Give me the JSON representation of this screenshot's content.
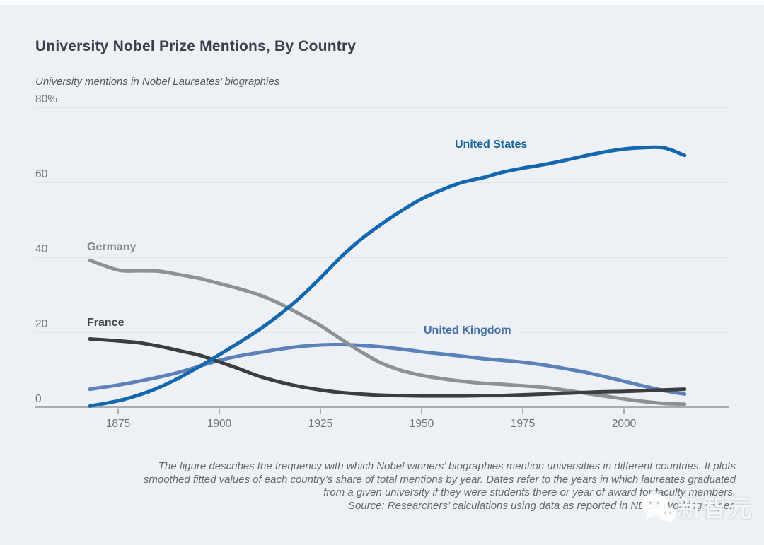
{
  "chart_data": {
    "type": "line",
    "title": "University Nobel Prize Mentions, By Country",
    "subtitle": "University mentions in Nobel Laureates’ biographies",
    "xlabel": "",
    "ylabel": "",
    "xlim": [
      1868,
      2015
    ],
    "ylim": [
      0,
      80
    ],
    "grid": true,
    "legend_position": "inline-labels",
    "x": [
      1868,
      1875,
      1880,
      1885,
      1890,
      1895,
      1900,
      1905,
      1910,
      1915,
      1920,
      1925,
      1930,
      1935,
      1940,
      1945,
      1950,
      1955,
      1960,
      1965,
      1970,
      1975,
      1980,
      1985,
      1990,
      1995,
      2000,
      2005,
      2010,
      2015
    ],
    "xticks": [
      "1875",
      "1900",
      "1925",
      "1950",
      "1975",
      "2000"
    ],
    "yticks": [
      0,
      20,
      40,
      60,
      80
    ],
    "ytick_labels": [
      "0",
      "20",
      "40",
      "60",
      "80%"
    ],
    "series": [
      {
        "name": "United Kingdom",
        "color": "#5c80ba",
        "label_color": "#446ea6",
        "values": [
          4.8,
          5.9,
          6.9,
          8.0,
          9.3,
          10.9,
          12.5,
          13.7,
          14.6,
          15.5,
          16.2,
          16.6,
          16.7,
          16.5,
          16.1,
          15.5,
          14.8,
          14.2,
          13.6,
          13.0,
          12.5,
          12.0,
          11.3,
          10.4,
          9.4,
          8.2,
          6.9,
          5.6,
          4.4,
          3.5
        ]
      },
      {
        "name": "Germany",
        "color": "#8e9194",
        "label_color": "#84888d",
        "values": [
          39.2,
          36.6,
          36.4,
          36.3,
          35.4,
          34.4,
          33.0,
          31.6,
          29.9,
          27.6,
          24.8,
          21.8,
          18.2,
          14.8,
          11.8,
          9.8,
          8.5,
          7.6,
          6.9,
          6.4,
          6.1,
          5.7,
          5.3,
          4.6,
          3.8,
          3.0,
          2.2,
          1.5,
          1.0,
          0.8
        ]
      },
      {
        "name": "France",
        "color": "#3c3d40",
        "label_color": "#43474b",
        "values": [
          18.2,
          17.7,
          17.2,
          16.3,
          15.1,
          13.9,
          12.1,
          10.2,
          8.2,
          6.7,
          5.5,
          4.6,
          3.9,
          3.5,
          3.2,
          3.1,
          3.0,
          3.0,
          3.0,
          3.1,
          3.1,
          3.3,
          3.5,
          3.7,
          3.9,
          4.1,
          4.2,
          4.4,
          4.6,
          4.8
        ]
      },
      {
        "name": "United States",
        "color": "#1267ae",
        "label_color": "#14639e",
        "values": [
          0.3,
          1.7,
          3.2,
          5.2,
          7.8,
          10.8,
          14.0,
          17.3,
          20.8,
          24.8,
          29.3,
          34.5,
          40.0,
          44.8,
          48.8,
          52.4,
          55.6,
          58.0,
          60.0,
          61.2,
          62.7,
          63.8,
          64.7,
          65.8,
          67.0,
          68.1,
          68.9,
          69.3,
          69.2,
          67.2
        ]
      }
    ]
  },
  "caption": {
    "lines": [
      "The figure describes the frequency with which Nobel winners’ biographies mention universities in different countries. It plots",
      "smoothed fitted values of each country’s share of total mentions by year. Dates refer to the years in which laureates graduated",
      "from a given university if they were students there or year of award for faculty members.",
      "Source: Researchers’ calculations using data as reported in NBER Working Paper."
    ]
  },
  "watermark": {
    "text": "新智元",
    "icon": "wechat-bubbles-icon"
  }
}
